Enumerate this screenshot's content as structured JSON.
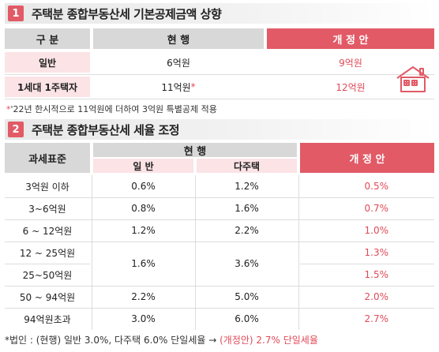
{
  "section1": {
    "number": "1",
    "title": "주택분 종합부동산세 기본공제금액 상향",
    "headers": [
      "구 분",
      "현 행",
      "개 정 안"
    ],
    "rows": [
      {
        "label": "일반",
        "current": "6억원",
        "current_mark": "",
        "proposed": "9억원"
      },
      {
        "label": "1세대 1주택자",
        "current": "11억원",
        "current_mark": "*",
        "proposed": "12억원"
      }
    ],
    "note_mark": "*",
    "note": "'22년 한시적으로 11억원에 더하여 3억원 특별공제 적용"
  },
  "section2": {
    "number": "2",
    "title": "주택분 종합부동산세 세율 조정",
    "headers": {
      "base": "과세표준",
      "current": "현 행",
      "current_general": "일 반",
      "current_multi": "다주택",
      "proposed": "개 정 안"
    },
    "rows": [
      {
        "base": "3억원 이하",
        "general": "0.6%",
        "multi": "1.2%",
        "proposed": "0.5%"
      },
      {
        "base": "3~6억원",
        "general": "0.8%",
        "multi": "1.6%",
        "proposed": "0.7%"
      },
      {
        "base": "6 ~ 12억원",
        "general": "1.2%",
        "multi": "2.2%",
        "proposed": "1.0%"
      },
      {
        "base": "12 ~ 25억원",
        "general": "1.6%",
        "multi": "3.6%",
        "proposed": "1.3%"
      },
      {
        "base": "25~50억원",
        "general": "",
        "multi": "",
        "proposed": "1.5%"
      },
      {
        "base": "50 ~ 94억원",
        "general": "2.2%",
        "multi": "5.0%",
        "proposed": "2.0%"
      },
      {
        "base": "94억원초과",
        "general": "3.0%",
        "multi": "6.0%",
        "proposed": "2.7%"
      }
    ],
    "note_prefix": "*법인 : (현행) 일반 3.0%, 다주택 6.0% 단일세율 → ",
    "note_highlight": "(개정안) 2.7% 단일세율"
  },
  "icons": {
    "house": "house-icon"
  },
  "colors": {
    "accent": "#e15a66",
    "pink": "#fbe3e6",
    "gray": "#d8d8d8"
  }
}
